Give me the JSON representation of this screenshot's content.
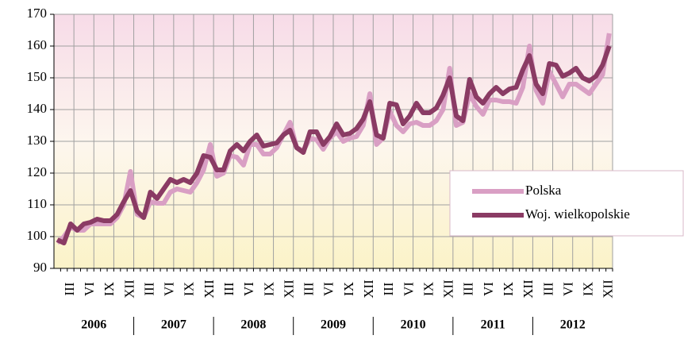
{
  "chart_data": {
    "type": "line",
    "categories": [
      null,
      null,
      "III",
      null,
      null,
      "VI",
      null,
      null,
      "IX",
      null,
      null,
      "XII",
      null,
      null,
      "III",
      null,
      null,
      "VI",
      null,
      null,
      "IX",
      null,
      null,
      "XII",
      null,
      null,
      "III",
      null,
      null,
      "VI",
      null,
      null,
      "IX",
      null,
      null,
      "XII",
      null,
      null,
      "III",
      null,
      null,
      "VI",
      null,
      null,
      "IX",
      null,
      null,
      "XII",
      null,
      null,
      "III",
      null,
      null,
      "VI",
      null,
      null,
      "IX",
      null,
      null,
      "XII",
      null,
      null,
      "III",
      null,
      null,
      "VI",
      null,
      null,
      "IX",
      null,
      null,
      "XII",
      null,
      null,
      "III",
      null,
      null,
      "VI",
      null,
      null,
      "IX",
      null,
      null,
      "XII"
    ],
    "years": [
      "2006",
      "2007",
      "2008",
      "2009",
      "2010",
      "2011",
      "2012"
    ],
    "series": [
      {
        "name": "Polska",
        "color": "#d99fc4",
        "values": [
          98,
          100,
          103,
          102,
          102,
          104,
          104,
          104,
          104,
          106,
          110,
          120.5,
          107,
          106,
          111,
          110.5,
          110.5,
          114,
          115,
          114.5,
          114,
          117,
          121,
          129,
          119,
          120,
          125.5,
          125,
          122.5,
          129,
          129,
          126,
          126,
          128,
          132,
          136,
          128,
          127,
          131,
          130.5,
          127.5,
          131,
          133,
          130,
          131,
          131.5,
          135,
          145,
          129,
          131,
          139.5,
          135,
          133,
          135.5,
          136,
          135,
          135,
          136.5,
          140,
          153,
          135,
          136,
          145,
          141,
          138.5,
          143,
          143,
          142.5,
          142.5,
          142,
          147,
          160,
          146,
          142,
          152,
          148,
          144,
          148,
          148,
          146.5,
          145,
          148,
          151,
          164
        ]
      },
      {
        "name": "Woj. wielkopolskie",
        "color": "#8a3b64",
        "values": [
          99,
          98,
          104,
          102,
          104,
          104.5,
          105.5,
          105,
          105,
          107,
          111,
          114.5,
          108,
          106,
          114,
          112,
          115,
          118,
          117,
          118,
          117,
          120,
          125.5,
          125,
          121,
          121,
          127,
          129,
          127,
          130,
          132,
          128.5,
          129,
          129.5,
          132,
          133.5,
          128,
          126.5,
          133,
          133,
          129,
          131.5,
          135.5,
          132,
          132.5,
          134,
          137,
          142.5,
          132,
          131,
          142,
          141.5,
          135.5,
          138,
          142,
          139,
          139,
          140.5,
          144.5,
          150,
          138,
          136.5,
          149.5,
          144,
          142,
          145,
          147,
          145,
          146.5,
          147,
          152.5,
          157,
          148,
          145,
          154.5,
          154,
          150.5,
          151.5,
          153,
          150,
          149,
          150.5,
          154,
          160
        ]
      }
    ],
    "ylim": [
      90,
      170
    ],
    "yticks": [
      90,
      100,
      110,
      120,
      130,
      140,
      150,
      160,
      170
    ],
    "grid": true
  }
}
